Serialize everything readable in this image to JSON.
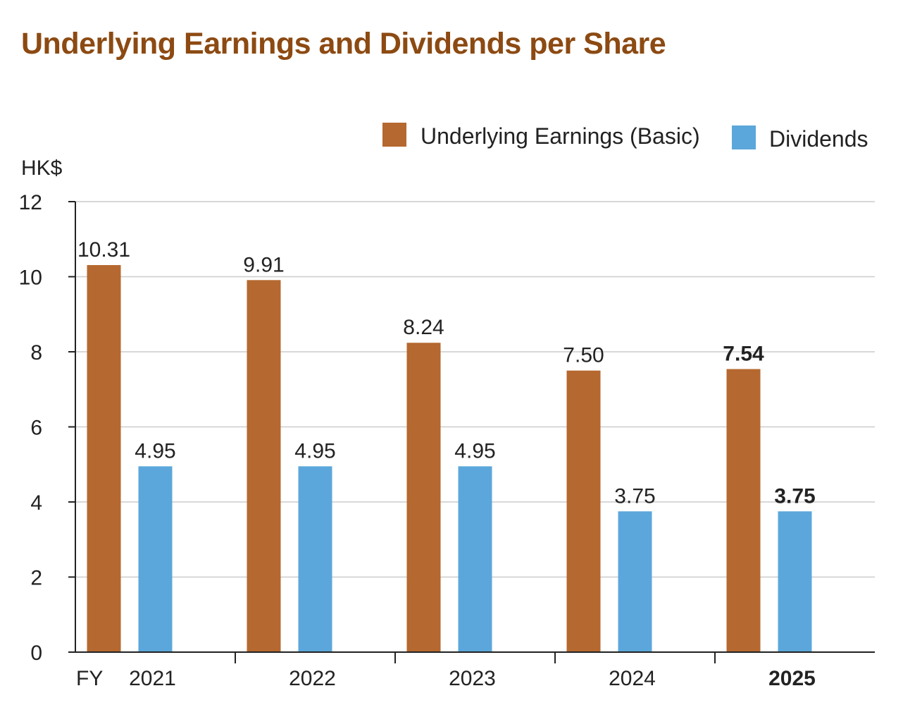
{
  "title": "Underlying Earnings and Dividends per Share",
  "colors": {
    "title": "#8c4a12",
    "earnings": "#b5682f",
    "dividends": "#5ba7db",
    "grid": "#cccccc",
    "axis": "#222222"
  },
  "chart_data": {
    "type": "bar",
    "ylabel": "HK$",
    "xlabel": "",
    "x_prefix": "FY",
    "categories": [
      "2021",
      "2022",
      "2023",
      "2024",
      "2025"
    ],
    "highlight_category": "2025",
    "series": [
      {
        "name": "Underlying Earnings (Basic)",
        "values": [
          10.31,
          9.91,
          8.24,
          7.5,
          7.54
        ],
        "labels": [
          "10.31",
          "9.91",
          "8.24",
          "7.50",
          "7.54"
        ]
      },
      {
        "name": "Dividends",
        "values": [
          4.95,
          4.95,
          4.95,
          3.75,
          3.75
        ],
        "labels": [
          "4.95",
          "4.95",
          "4.95",
          "3.75",
          "3.75"
        ]
      }
    ],
    "ylim": [
      0,
      12
    ],
    "yticks": [
      "0",
      "2",
      "4",
      "6",
      "8",
      "10",
      "12"
    ],
    "grid": true,
    "legend_position": "top-right"
  }
}
